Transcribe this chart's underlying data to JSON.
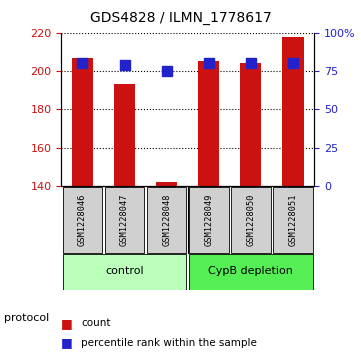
{
  "title": "GDS4828 / ILMN_1778617",
  "samples": [
    "GSM1228046",
    "GSM1228047",
    "GSM1228048",
    "GSM1228049",
    "GSM1228050",
    "GSM1228051"
  ],
  "counts": [
    207,
    193,
    142,
    205,
    204,
    218
  ],
  "percentile_ranks": [
    80,
    79,
    75,
    80,
    80,
    80
  ],
  "ylim_left": [
    140,
    220
  ],
  "ylim_right": [
    0,
    100
  ],
  "yticks_left": [
    140,
    160,
    180,
    200,
    220
  ],
  "yticks_right": [
    0,
    25,
    50,
    75,
    100
  ],
  "yticklabels_right": [
    "0",
    "25",
    "50",
    "75",
    "100%"
  ],
  "bar_color": "#cc1111",
  "dot_color": "#2222cc",
  "bar_bottom": 140,
  "groups": [
    {
      "label": "control",
      "indices": [
        0,
        1,
        2
      ],
      "color": "#bbffbb"
    },
    {
      "label": "CypB depletion",
      "indices": [
        3,
        4,
        5
      ],
      "color": "#55ee55"
    }
  ],
  "protocol_label": "protocol",
  "legend_items": [
    {
      "color": "#cc1111",
      "label": "count"
    },
    {
      "color": "#2222cc",
      "label": "percentile rank within the sample"
    }
  ],
  "left_tick_color": "#cc1111",
  "right_tick_color": "#2222cc",
  "bar_width": 0.5,
  "dot_size": 48,
  "background_color": "#ffffff"
}
